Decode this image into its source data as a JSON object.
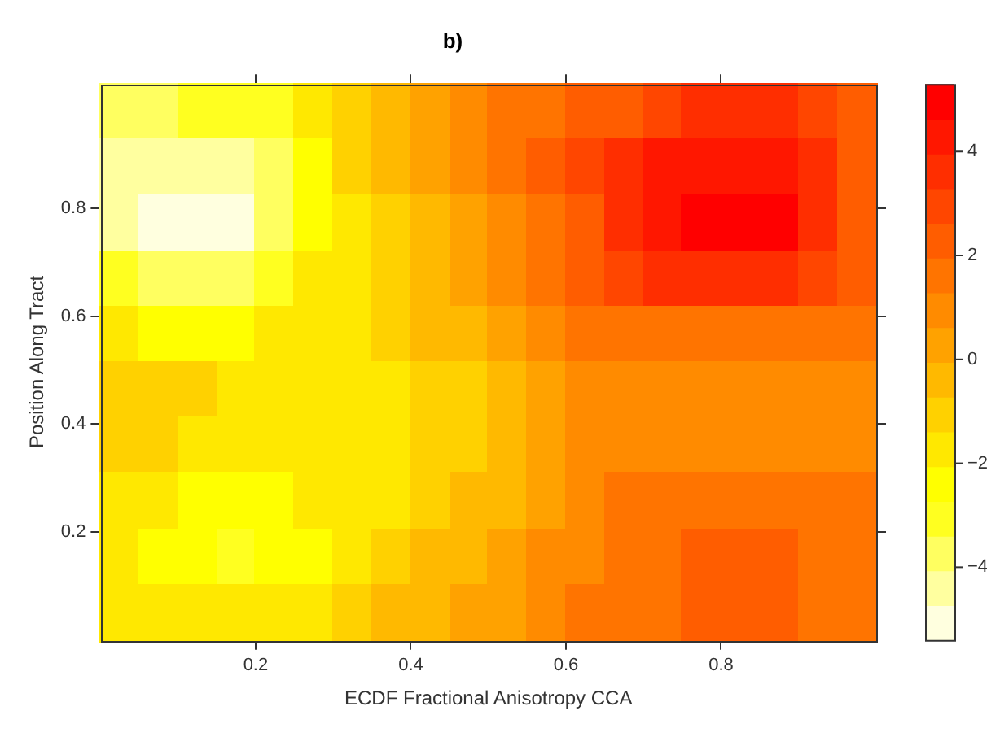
{
  "chart_data": {
    "type": "heatmap",
    "title": "b)",
    "xlabel": "ECDF Fractional Anisotropy CCA",
    "ylabel": "Position Along Tract",
    "x": [
      0.025,
      0.075,
      0.125,
      0.175,
      0.225,
      0.275,
      0.325,
      0.375,
      0.425,
      0.475,
      0.525,
      0.575,
      0.625,
      0.675,
      0.725,
      0.775,
      0.825,
      0.875,
      0.925,
      0.975
    ],
    "xlim": [
      0,
      1
    ],
    "xticks": [
      0.2,
      0.4,
      0.6,
      0.8
    ],
    "ylim": [
      0,
      1.03
    ],
    "yticks": [
      0.2,
      0.4,
      0.6,
      0.8
    ],
    "clim": [
      -5.4,
      5.3
    ],
    "cticks": [
      -4,
      -2,
      0,
      2,
      4
    ],
    "cells": [
      [
        -3.5,
        -3.4,
        -3.3,
        -3.1,
        -2.8,
        -2.0,
        -1.2,
        -0.5,
        0.2,
        0.8,
        1.3,
        1.8,
        2.2,
        2.6,
        3.0,
        3.3,
        3.4,
        3.3,
        2.9,
        2.2
      ],
      [
        -4.2,
        -4.6,
        -4.7,
        -4.5,
        -3.5,
        -2.2,
        -1.2,
        -0.5,
        0.2,
        0.9,
        1.5,
        2.2,
        2.9,
        3.5,
        4.0,
        4.5,
        4.6,
        4.3,
        3.4,
        2.3
      ],
      [
        -4.5,
        -5.0,
        -5.2,
        -5.0,
        -3.9,
        -2.5,
        -1.4,
        -0.8,
        -0.2,
        0.4,
        1.0,
        1.7,
        2.6,
        3.6,
        4.3,
        4.9,
        5.2,
        4.9,
        3.9,
        2.5
      ],
      [
        -3.2,
        -3.6,
        -3.8,
        -3.6,
        -3.0,
        -2.0,
        -1.4,
        -0.9,
        -0.3,
        0.2,
        0.8,
        1.4,
        2.0,
        2.8,
        3.4,
        3.8,
        3.9,
        3.6,
        2.9,
        2.0
      ],
      [
        -2.0,
        -2.1,
        -2.2,
        -2.1,
        -1.9,
        -1.6,
        -1.4,
        -1.0,
        -0.6,
        -0.2,
        0.3,
        0.8,
        1.3,
        1.6,
        1.8,
        1.9,
        1.9,
        1.8,
        1.6,
        1.4
      ],
      [
        -1.0,
        -1.1,
        -1.3,
        -1.5,
        -1.6,
        -1.6,
        -1.6,
        -1.4,
        -1.1,
        -0.8,
        -0.3,
        0.2,
        0.7,
        1.0,
        1.1,
        1.1,
        1.1,
        1.1,
        1.1,
        1.1
      ],
      [
        -1.0,
        -1.1,
        -1.4,
        -1.7,
        -1.9,
        -1.8,
        -1.7,
        -1.5,
        -1.2,
        -0.8,
        -0.3,
        0.2,
        0.8,
        1.1,
        1.2,
        1.2,
        1.2,
        1.2,
        1.2,
        1.2
      ],
      [
        -1.8,
        -2.0,
        -2.2,
        -2.4,
        -2.3,
        -2.0,
        -1.7,
        -1.5,
        -1.1,
        -0.7,
        -0.2,
        0.4,
        0.9,
        1.3,
        1.6,
        1.8,
        1.8,
        1.7,
        1.6,
        1.5
      ],
      [
        -1.9,
        -2.2,
        -2.6,
        -2.8,
        -2.6,
        -2.1,
        -1.5,
        -1.1,
        -0.7,
        -0.3,
        0.2,
        0.7,
        1.1,
        1.5,
        1.9,
        2.2,
        2.3,
        2.2,
        1.8,
        1.5
      ],
      [
        -1.5,
        -1.7,
        -1.9,
        -2.0,
        -1.8,
        -1.4,
        -1.0,
        -0.6,
        -0.2,
        0.2,
        0.6,
        1.0,
        1.3,
        1.6,
        1.9,
        2.1,
        2.2,
        2.1,
        1.9,
        1.7
      ]
    ]
  }
}
